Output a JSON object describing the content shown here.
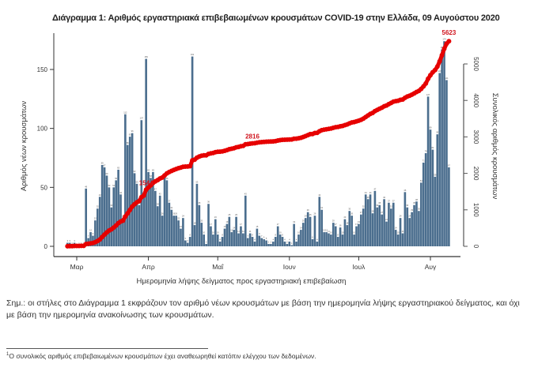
{
  "chart_data": {
    "type": "bar+line",
    "title": "Διάγραμμα 1: Αριθμός εργαστηριακά επιβεβαιωμένων κρουσμάτων COVID-19 στην Ελλάδα, 09 Αυγούστου 2020",
    "xlabel": "Ημερομηνία λήψης δείγματος προς εργαστηριακή επιβεβαίωση",
    "ylabel_left": "Αριθμός νέων κρουσμάτων",
    "ylabel_right": "Συνολικός αριθμός κρουσμάτων",
    "x_start": "2020-02-26",
    "x_end": "2020-08-09",
    "x_ticks": [
      {
        "label": "Μαρ",
        "date": "2020-03-01"
      },
      {
        "label": "Απρ",
        "date": "2020-04-01"
      },
      {
        "label": "Μαΐ",
        "date": "2020-05-01"
      },
      {
        "label": "Ιουν",
        "date": "2020-06-01"
      },
      {
        "label": "Ιουλ",
        "date": "2020-07-01"
      },
      {
        "label": "Αυγ",
        "date": "2020-08-01"
      }
    ],
    "ylim_left": [
      0,
      175
    ],
    "yticks_left": [
      "0",
      "50",
      "100",
      "150"
    ],
    "ylim_right": [
      0,
      5700
    ],
    "yticks_right": [
      "0",
      "1000",
      "2000",
      "3000",
      "4000",
      "5000"
    ],
    "daily_cases": [
      3,
      3,
      1,
      3,
      0,
      1,
      1,
      1,
      49,
      7,
      12,
      9,
      22,
      32,
      42,
      69,
      67,
      60,
      50,
      33,
      50,
      56,
      65,
      44,
      24,
      112,
      86,
      93,
      96,
      62,
      53,
      35,
      107,
      44,
      159,
      63,
      58,
      63,
      47,
      34,
      43,
      26,
      59,
      56,
      37,
      31,
      26,
      26,
      22,
      15,
      24,
      5,
      3,
      8,
      161,
      18,
      53,
      35,
      20,
      10,
      2,
      36,
      17,
      10,
      23,
      10,
      4,
      8,
      15,
      19,
      25,
      12,
      14,
      25,
      11,
      17,
      11,
      43,
      7,
      11,
      8,
      4,
      15,
      9,
      7,
      6,
      5,
      2,
      2,
      4,
      8,
      17,
      10,
      8,
      4,
      2,
      4,
      1,
      19,
      4,
      10,
      14,
      20,
      24,
      29,
      25,
      6,
      26,
      4,
      42,
      31,
      12,
      12,
      11,
      10,
      20,
      17,
      8,
      16,
      10,
      23,
      18,
      30,
      26,
      10,
      17,
      19,
      27,
      32,
      44,
      40,
      44,
      28,
      47,
      33,
      35,
      27,
      40,
      21,
      37,
      32,
      37,
      14,
      10,
      24,
      11,
      46,
      33,
      24,
      29,
      35,
      38,
      30,
      54,
      71,
      79,
      127,
      99,
      82,
      59,
      95,
      147,
      167,
      174,
      141,
      67
    ],
    "cumulative_labels": [
      "1544",
      "2816",
      "5623"
    ],
    "colors": {
      "bars": "#4b6e8e",
      "cumulative_line": "#e60000",
      "cumulative_label": "#d0141e"
    },
    "grid": false
  },
  "note": "Σημ.: οι στήλες στο Διάγραμμα 1 εκφράζουν τον αριθμό νέων κρουσμάτων με βάση την ημερομηνία λήψης εργαστηριακού δείγματος, και όχι με βάση την ημερομηνία ανακοίνωσης των κρουσμάτων.",
  "footnote_mark": "1",
  "footnote": "Ο συνολικός αριθμός επιβεβαιωμένων κρουσμάτων έχει αναθεωρηθεί κατόπιν ελέγχου των δεδομένων."
}
